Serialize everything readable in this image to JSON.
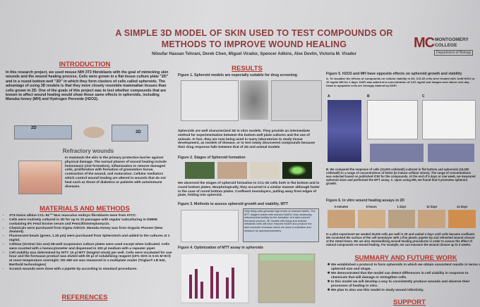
{
  "header": {
    "title_line1": "A SIMPLE 3D MODEL OF SKIN USED TO TEST COMPOUNDS OR",
    "title_line2": "METHODS TO IMPROVE WOUND HEALING",
    "authors": "Niloufar Hassan Tehrani, Derek Chen, Miguel Virador, Spencer Adkins, Alex Devlin, Victoria M. Virador",
    "logo": {
      "mark": "MC",
      "name1": "MONTGOMERY",
      "name2": "COLLEGE",
      "dept": "Department of Biology"
    }
  },
  "left": {
    "intro_heading": "INTRODUCTION",
    "intro_text": "In this research project, we used mouse NIH 3T3 fibroblasts with the goal of mimicking skin wounds and the wound healing process. Cells were grown in a flat tissue culture plate \"2D\" and in a round bottom well \"3D\" in which they form clusters of cells called spheroids. The advantage of using 3D models is that they more closely resemble mammalian tissues than cells grown in 2D. One of the goals of this project was to test whether compounds that are known to affect wound healing would show those same effects in spheroids, including Manuka honey (MH) and Hydrogen Peroxide (H2O2).",
    "label_2d": "2D",
    "label_3d": "3D",
    "refractory_heading": "Refractory wounds",
    "refractory_text": "In mammals the skin is the primary protection barrier against physical damage. The normal phases of wound healing include hemostasis (clot formation), inflammation to remove damaged cells, proliferation with formation of granulation tissue, contraction of the wound, and maturation. Cellular mediators which control wound healing are altered in wounds that do not heal such as those of diabetics or patients with autoimmune diseases.",
    "methods_heading": "MATERIALS AND METHODS",
    "methods_items": [
      "3T3-Swiss albino CCL-92™ Mus musculus embryo fibroblasts were from ATCC.",
      "Cells were routinely cultured in 2D for up to 10 passages with regular subculturing in DMEM containing 5% Fetal bovine serum and Penicillin/streptomycin.",
      "Chemicals were purchased from Sigma Aldrich. Manuka Honey was from Organic Pioneer (New Zealand).",
      "Fluorescent beads (green, 1.35 μm) were purchased from Spherotech and added to the cultures at 1 mg/ml.",
      "Cellstar (Greiner bio-one) 96-well suspension culture plates were used except when indicated. Cells were counted with a hemocytometer and dispensed in 100 μl medium with a repeater pipet.",
      "Cell viability was determined by MTT: 10 μl MTT (5mg/ml stock) per well. Cells were incubated for one hour and the formazan product was eluted with 90 μl of solubilizing reagent (10% SDS in 0.01 M HCl) at room temperature overnight. OD 490 nm was measured in a multiplate reader (Triglas® LB 942, Berthold technologies)",
      "Scratch wounds were done with a pipette tip according to standard procedures."
    ],
    "references_heading": "REFERENCES"
  },
  "middle": {
    "results_heading": "RESULTS",
    "fig1_caption": "Figure 1. Spheroid models are especially suitable for drug screening",
    "fig1_text": "Spheroids are well characterized 3D in vitro models. They provide an intermediate method for experimentation between the bottom well plate cultures and the use of animals. In fact, they are now being used in many laboratories to study tissue development, as models of disease, or to test newly discovered compounds because their drug response falls between that of 2D and animal models",
    "fig2_caption": "Figure 2. Stages of Spheroid formation",
    "fig2_text": "We observed the stages of spheroid formation in CCL-92 cells both in flat bottom and in round bottom plates. Morphologically, they occurred in a similar manner although faster in the case of round bottom plates. Confluent monolayers, pulling away from edges of plate, folding into spheroid.",
    "fig3_caption": "Figure 3. Methods to assess spheroid growth and viability. MTT",
    "fig3_box": "Only living cells generate high levels of reduced NADH. The MTT reagent reacts with reduced NADH, thus measuring mitochondrial activity by the formation of a dark colored formazan product. 3D models with living and actively metabolic cells will have reduced NADH and produce the dark insoluble formazan which we used to solubilize and measure by spectrophotometry",
    "fig4_caption": "Figure 4. Optimization of MTT assay in spheroids"
  },
  "right": {
    "fig5_caption": "Figure 5. H2O2 and MH have opposite effects on spheroid growth and viability",
    "fig5_sub": "A. To visualize the effects of compounds on cellular viability in 2D, CCL92 cells were treated with 1mM H2O2 or 10 mg/ml MH for 2 days. DAPI was added at a concentration of 0.01 mg/ml and images were taken next day. Dead or apoptotic cells are strongly stained by DAPI.",
    "fig5_panels": [
      "A",
      "B",
      "C"
    ],
    "fig5_text": "B. We compared the response of cells (10,000 cells/well) cultured in flat bottom and spheroids (10,000 cells/well) to a range of concentrations of H2O2 (to induce cellular stress). The range of concentrations was selected based on published IC50 for the compounds. At the end of 5 days or one week, we measured spheroid sizes and performed the MTT assay. C. Upon using MH, we found that it promotes spheroid growth.",
    "fig6_caption": "Figure 6. In vitro wound healing assays in 2D",
    "fig6_labels": [
      "0 minutes",
      "5 hours",
      "1 days",
      "12 days",
      "14 days"
    ],
    "fig6_text": "In a pilot experiment we seeded 25,000 cells per well in 2D and waited 3 days until cells became confluent. We scratched the surface of the cell monolayer with a fine plastic pipette tip and refreshed wound closure at the stated times. We are also standardizing wound healing procedures in order to assess the effect of natural compounds on wound healing. For example, we can measure the wound closure up to 2 weeks.",
    "summary_heading": "SUMMARY AND FUTURE WORK",
    "summary_items": [
      "We established a protocol to form spheroids in which we obtain consistent results in terms of spheroid size and shape.",
      "We demonstrated that the model can detect differences in cell viability in response to chemicals that will damage or strengthen cells.",
      "In this model we will develop a way to consistently produce wounds and observe their processes of healing in vitro.",
      "We plan to also use this model to study wound infectivity."
    ],
    "support_heading": "SUPPORT"
  }
}
